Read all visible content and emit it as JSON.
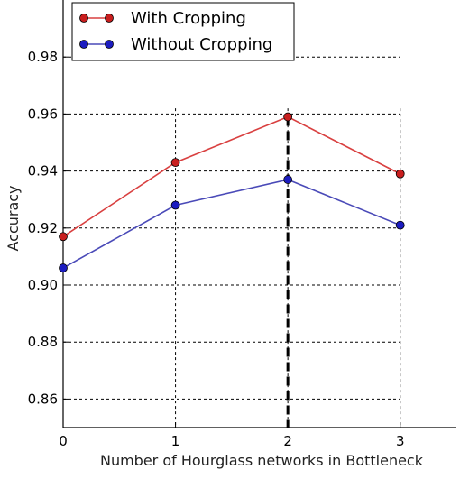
{
  "chart_data": {
    "type": "line",
    "title": "",
    "xlabel": "Number of Hourglass networks in Bottleneck",
    "ylabel": "Accuracy",
    "x": [
      0,
      1,
      2,
      3
    ],
    "xlim": [
      0,
      3.5
    ],
    "ylim": [
      0.85,
      1.0
    ],
    "xticks": [
      "0",
      "1",
      "2",
      "3"
    ],
    "yticks": [
      "0.86",
      "0.88",
      "0.90",
      "0.92",
      "0.94",
      "0.96",
      "0.98"
    ],
    "grid": true,
    "legend_position": "top-left",
    "highlight_x": 2,
    "series": [
      {
        "name": "With Cropping",
        "color": "#d94040",
        "marker_color": "#c81e1e",
        "values": [
          0.917,
          0.943,
          0.959,
          0.939
        ]
      },
      {
        "name": "Without Cropping",
        "color": "#4a4ab8",
        "marker_color": "#1c1cc0",
        "values": [
          0.906,
          0.928,
          0.937,
          0.921
        ]
      }
    ]
  }
}
